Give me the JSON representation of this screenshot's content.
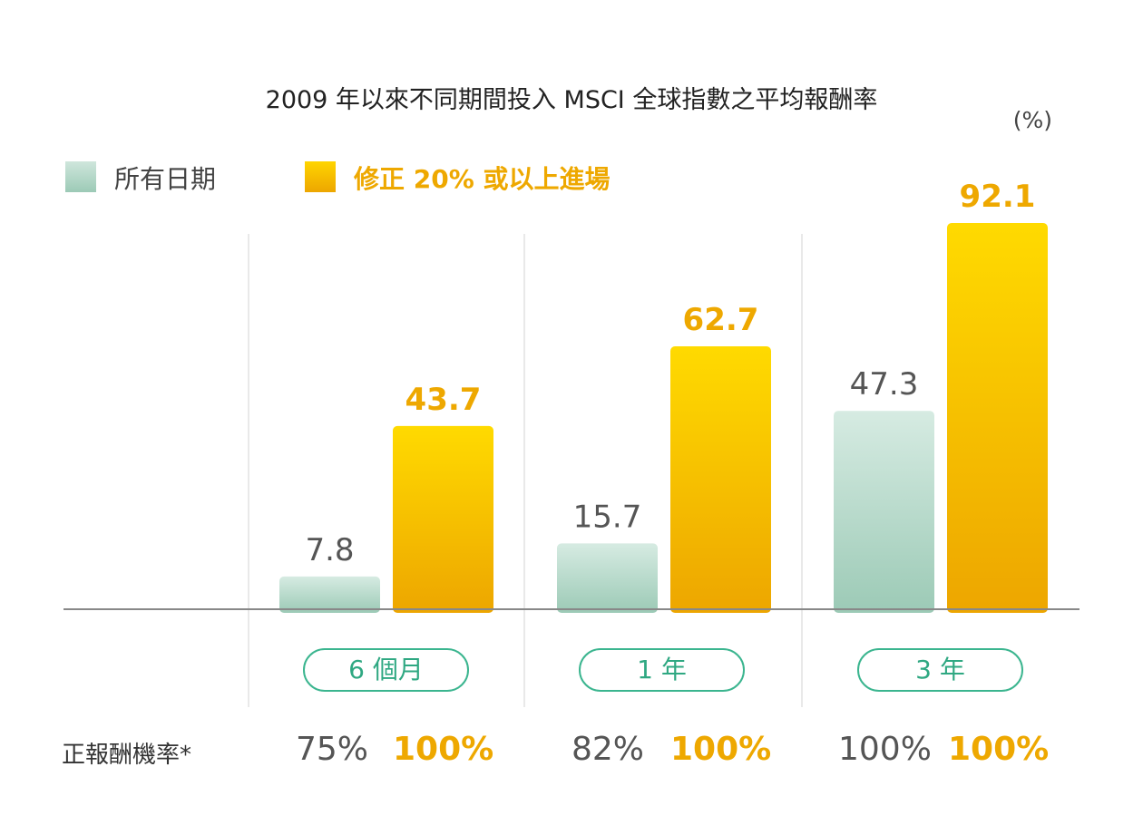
{
  "chart_data": {
    "type": "bar",
    "title": "2009 年以來不同期間投入 MSCI 全球指數之平均報酬率",
    "unit": "(%)",
    "categories": [
      "6 個月",
      "1 年",
      "3 年"
    ],
    "series": [
      {
        "name": "所有日期",
        "values": [
          7.8,
          15.7,
          47.3
        ],
        "color": "#9ccab6"
      },
      {
        "name": "修正 20% 或以上進場",
        "values": [
          43.7,
          62.7,
          92.1
        ],
        "color": "#eda600"
      }
    ],
    "ylim": [
      0,
      92.1
    ],
    "grid": false,
    "legend": "top-left"
  },
  "positive_rate": {
    "label": "正報酬機率*",
    "all_dates": [
      "75%",
      "82%",
      "100%"
    ],
    "correction": [
      "100%",
      "100%",
      "100%"
    ]
  }
}
